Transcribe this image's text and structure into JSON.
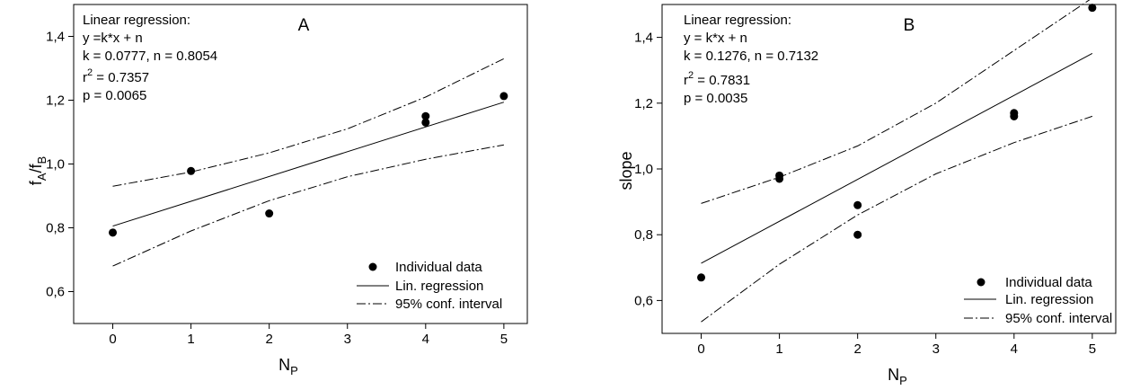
{
  "chart_data": [
    {
      "type": "scatter",
      "panel_label": "A",
      "xlabel": {
        "main": "N",
        "sub": "P"
      },
      "ylabel": {
        "main": "f",
        "sub1": "A",
        "mid": "/f",
        "sub2": "B"
      },
      "xlim": [
        -0.5,
        5.3
      ],
      "ylim": [
        0.5,
        1.5
      ],
      "xticks": [
        "0",
        "1",
        "2",
        "3",
        "4",
        "5"
      ],
      "xtick_values": [
        0,
        1,
        2,
        3,
        4,
        5
      ],
      "yticks": [
        "0,6",
        "0,8",
        "1,0",
        "1,2",
        "1,4"
      ],
      "ytick_values": [
        0.6,
        0.8,
        1.0,
        1.2,
        1.4
      ],
      "annotation": {
        "title": "Linear regression:",
        "eq": "y =k*x + n",
        "coef": "k = 0.0777, n = 0.8054",
        "r2_prefix": "r",
        "r2_exp": "2",
        "r2_value": " = 0.7357",
        "p": "p = 0.0065"
      },
      "points": [
        {
          "x": 0,
          "y": 0.785
        },
        {
          "x": 1,
          "y": 0.978
        },
        {
          "x": 2,
          "y": 0.845
        },
        {
          "x": 4,
          "y": 1.15
        },
        {
          "x": 4,
          "y": 1.13
        },
        {
          "x": 5,
          "y": 1.213
        }
      ],
      "regression": {
        "k": 0.0777,
        "n": 0.8054
      },
      "ci_upper": [
        {
          "x": 0,
          "y": 0.93
        },
        {
          "x": 1,
          "y": 0.975
        },
        {
          "x": 2,
          "y": 1.035
        },
        {
          "x": 3,
          "y": 1.11
        },
        {
          "x": 4,
          "y": 1.21
        },
        {
          "x": 5,
          "y": 1.33
        }
      ],
      "ci_lower": [
        {
          "x": 0,
          "y": 0.68
        },
        {
          "x": 1,
          "y": 0.79
        },
        {
          "x": 2,
          "y": 0.885
        },
        {
          "x": 3,
          "y": 0.96
        },
        {
          "x": 4,
          "y": 1.015
        },
        {
          "x": 5,
          "y": 1.06
        }
      ],
      "legend": {
        "points": "Individual data",
        "regression": "Lin. regression",
        "ci": "95% conf. interval",
        "placement": "bottom-right"
      }
    },
    {
      "type": "scatter",
      "panel_label": "B",
      "xlabel": {
        "main": "N",
        "sub": "P"
      },
      "ylabel": {
        "main": "slope"
      },
      "xlim": [
        -0.5,
        5.3
      ],
      "ylim": [
        0.5,
        1.5
      ],
      "xticks": [
        "0",
        "1",
        "2",
        "3",
        "4",
        "5"
      ],
      "xtick_values": [
        0,
        1,
        2,
        3,
        4,
        5
      ],
      "yticks": [
        "0,6",
        "0,8",
        "1,0",
        "1,2",
        "1,4"
      ],
      "ytick_values": [
        0.6,
        0.8,
        1.0,
        1.2,
        1.4
      ],
      "annotation": {
        "title": "Linear regression:",
        "eq": "y = k*x + n",
        "coef": "k = 0.1276, n = 0.7132",
        "r2_prefix": "r",
        "r2_exp": "2",
        "r2_value": " = 0.7831",
        "p": "p = 0.0035"
      },
      "points": [
        {
          "x": 0,
          "y": 0.67
        },
        {
          "x": 1,
          "y": 0.98
        },
        {
          "x": 1,
          "y": 0.97
        },
        {
          "x": 2,
          "y": 0.89
        },
        {
          "x": 2,
          "y": 0.8
        },
        {
          "x": 4,
          "y": 1.17
        },
        {
          "x": 4,
          "y": 1.16
        },
        {
          "x": 5,
          "y": 1.49
        }
      ],
      "regression": {
        "k": 0.1276,
        "n": 0.7132
      },
      "ci_upper": [
        {
          "x": 0,
          "y": 0.895
        },
        {
          "x": 1,
          "y": 0.975
        },
        {
          "x": 2,
          "y": 1.07
        },
        {
          "x": 3,
          "y": 1.2
        },
        {
          "x": 4,
          "y": 1.36
        },
        {
          "x": 5,
          "y": 1.52
        }
      ],
      "ci_lower": [
        {
          "x": 0,
          "y": 0.535
        },
        {
          "x": 1,
          "y": 0.71
        },
        {
          "x": 2,
          "y": 0.86
        },
        {
          "x": 3,
          "y": 0.985
        },
        {
          "x": 4,
          "y": 1.08
        },
        {
          "x": 5,
          "y": 1.16
        }
      ],
      "legend": {
        "points": "Individual data",
        "regression": "Lin. regression",
        "ci": "95% conf. interval",
        "placement": "bottom-right"
      }
    }
  ]
}
